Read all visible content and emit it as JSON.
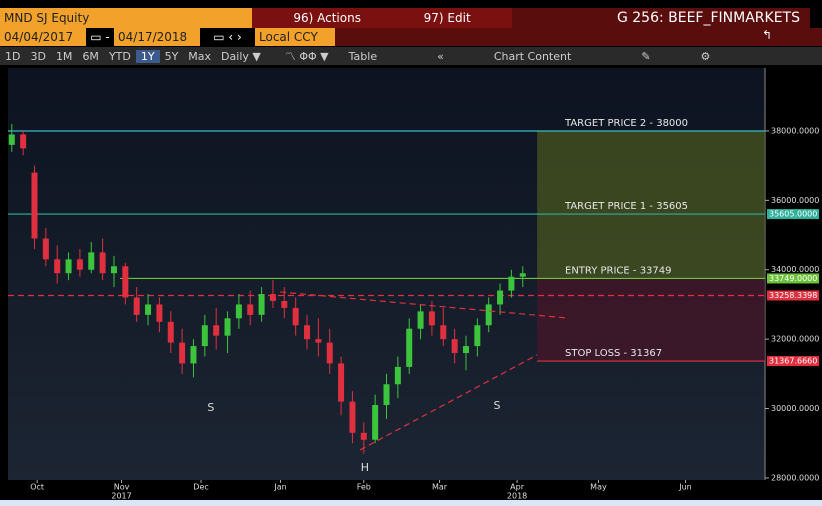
{
  "header": {
    "security": "MND SJ Equity",
    "actions": "96) Actions",
    "edit": "97) Edit",
    "page": "G 256: BEEF_FINMARKETS",
    "start_date": "04/04/2017",
    "end_date": "04/17/2018",
    "currency": "Local CCY",
    "periods": [
      "1D",
      "3D",
      "1M",
      "6M",
      "YTD",
      "1Y",
      "5Y",
      "Max"
    ],
    "selected_period": "1Y",
    "frequency": "Daily",
    "table": "Table",
    "chart_content": "Chart Content"
  },
  "chart_data": {
    "type": "candlestick",
    "x": [
      1,
      4,
      7,
      10,
      13,
      16,
      19,
      22,
      25,
      28,
      31,
      34,
      37,
      40,
      43,
      46,
      49,
      52,
      55,
      58,
      61,
      64,
      67,
      70,
      73,
      76,
      79,
      82,
      85,
      88,
      91,
      94,
      97,
      100,
      103,
      106,
      109,
      112,
      115,
      118,
      121,
      124,
      127,
      130,
      133,
      136
    ],
    "open": [
      37600,
      37900,
      36800,
      34900,
      34300,
      33900,
      34300,
      34000,
      34500,
      33900,
      34100,
      33200,
      32700,
      33000,
      32500,
      31900,
      31300,
      31800,
      32400,
      32100,
      32600,
      33000,
      32700,
      33300,
      33100,
      32900,
      32400,
      32000,
      31900,
      31300,
      30200,
      29300,
      29100,
      30100,
      30700,
      31200,
      32300,
      32800,
      32400,
      32000,
      31600,
      31800,
      32400,
      33000,
      33400,
      33800
    ],
    "high": [
      38200,
      38000,
      37000,
      35200,
      34700,
      34500,
      34600,
      34800,
      34900,
      34400,
      34200,
      33500,
      33300,
      33200,
      32800,
      32300,
      32000,
      32700,
      32900,
      32800,
      33300,
      33400,
      33500,
      33700,
      33500,
      33200,
      32700,
      32600,
      32300,
      31500,
      30500,
      29600,
      30400,
      31000,
      31500,
      32600,
      33000,
      33100,
      32900,
      32300,
      32100,
      32600,
      33200,
      33600,
      34000,
      34100
    ],
    "low": [
      37400,
      37300,
      34600,
      34100,
      33600,
      33700,
      33800,
      33900,
      33700,
      33500,
      33000,
      32500,
      32400,
      32200,
      31600,
      31000,
      30900,
      31500,
      31700,
      31600,
      32300,
      32400,
      32500,
      32900,
      32600,
      32100,
      31700,
      31500,
      31000,
      29800,
      29000,
      28700,
      29000,
      29700,
      30300,
      31000,
      32000,
      32100,
      31800,
      31300,
      31100,
      31500,
      32200,
      32700,
      33200,
      33500
    ],
    "close": [
      37900,
      37500,
      34900,
      34300,
      33900,
      34300,
      34000,
      34500,
      33900,
      34100,
      33200,
      32700,
      33000,
      32500,
      31900,
      31300,
      31800,
      32400,
      32100,
      32600,
      33000,
      32700,
      33300,
      33100,
      32900,
      32400,
      32000,
      31900,
      31300,
      30200,
      29300,
      29100,
      30100,
      30700,
      31200,
      32300,
      32800,
      32400,
      32000,
      31600,
      31800,
      32400,
      33000,
      33400,
      33800,
      33900
    ],
    "up_color": "#3cc43c",
    "down_color": "#e0303f",
    "xlim": [
      0,
      200
    ],
    "ylim": [
      27940,
      39815
    ],
    "xticks": [
      {
        "value": 7.7,
        "label": "Oct"
      },
      {
        "value": 30,
        "label": "Nov"
      },
      {
        "value": 51,
        "label": "Dec"
      },
      {
        "value": 72,
        "label": "Jan"
      },
      {
        "value": 94,
        "label": "Feb"
      },
      {
        "value": 114,
        "label": "Mar"
      },
      {
        "value": 134.5,
        "label": "Apr"
      },
      {
        "value": 156,
        "label": "May"
      },
      {
        "value": 179,
        "label": "Jun"
      }
    ],
    "year_labels": [
      {
        "value": 30,
        "label": "2017"
      },
      {
        "value": 134.5,
        "label": "2018"
      }
    ],
    "yticks": [
      {
        "value": 28000,
        "label": "28000.0000"
      },
      {
        "value": 30000,
        "label": "30000.0000"
      },
      {
        "value": 32000,
        "label": "32000.0000"
      },
      {
        "value": 34000,
        "label": "34000.0000"
      },
      {
        "value": 36000,
        "label": "36000.0000"
      },
      {
        "value": 38000,
        "label": "38000.0000"
      }
    ],
    "levels": [
      {
        "name": "TARGET PRICE 2 - 38000",
        "value": 38000,
        "x_start": 0,
        "color": "#3fb8c8"
      },
      {
        "name": "TARGET PRICE 1 - 35605",
        "value": 35605,
        "value_label": "35605.0000",
        "x_start": 0,
        "color": "#2fb09a"
      },
      {
        "name": "ENTRY PRICE - 33749",
        "value": 33749,
        "value_label": "33749.0000",
        "x_start": 29.6,
        "color": "#6cc23a"
      },
      {
        "name": "STOP LOSS - 31367",
        "value": 31367.666,
        "value_label": "31367.6660",
        "x_start": 139.8,
        "color": "#e0303f"
      }
    ],
    "dashed_level": {
      "value": 33258.3398,
      "value_label": "33258.3398",
      "color": "#e0303f"
    },
    "zones": [
      {
        "from": 38000,
        "to": 33749,
        "x_start": 139.8,
        "color": "#4a5a1e"
      },
      {
        "from": 33749,
        "to": 31367.666,
        "x_start": 139.8,
        "color": "#4a1628"
      }
    ],
    "trendlines": [
      {
        "x": [
          71.9,
          147.7
        ],
        "y": [
          33360,
          32610
        ]
      },
      {
        "x": [
          93,
          139.8
        ],
        "y": [
          28807,
          31545
        ]
      }
    ],
    "annotations": [
      {
        "text": "S",
        "x": 53.6,
        "y": 30020
      },
      {
        "text": "H",
        "x": 94.3,
        "y": 28290
      },
      {
        "text": "S",
        "x": 129.2,
        "y": 30075
      }
    ]
  }
}
